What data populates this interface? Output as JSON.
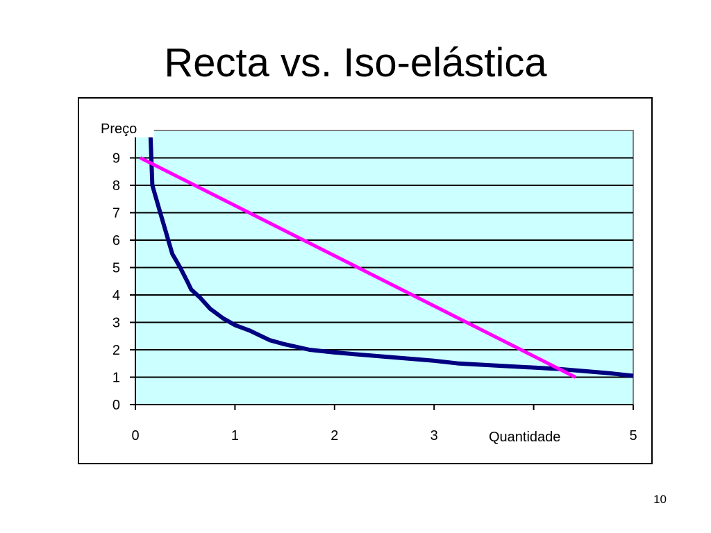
{
  "slide": {
    "title": "Recta vs. Iso-elástica",
    "page_number": "10"
  },
  "chart_data": {
    "type": "line",
    "title": "Recta vs. Iso-elástica",
    "xlabel": "Quantidade",
    "ylabel": "Preço",
    "xlim": [
      0,
      5
    ],
    "ylim": [
      0,
      10
    ],
    "x_ticks": [
      0,
      1,
      2,
      3,
      4,
      5
    ],
    "x_tick_labels": [
      "0",
      "1",
      "2",
      "3",
      "",
      "5"
    ],
    "y_ticks": [
      0,
      1,
      2,
      3,
      4,
      5,
      6,
      7,
      8,
      9
    ],
    "y_tick_labels": [
      "0",
      "1",
      "2",
      "3",
      "4",
      "5",
      "6",
      "7",
      "8",
      "9"
    ],
    "grid": "horizontal",
    "plot_background": "#ccffff",
    "series": [
      {
        "color": "#000080",
        "points": [
          [
            0.15,
            10.0
          ],
          [
            0.17,
            8.0
          ],
          [
            0.25,
            7.0
          ],
          [
            0.37,
            5.5
          ],
          [
            0.45,
            5.0
          ],
          [
            0.52,
            4.5
          ],
          [
            0.56,
            4.2
          ],
          [
            0.65,
            3.9
          ],
          [
            0.75,
            3.5
          ],
          [
            0.88,
            3.15
          ],
          [
            1.0,
            2.9
          ],
          [
            1.15,
            2.7
          ],
          [
            1.35,
            2.35
          ],
          [
            1.5,
            2.2
          ],
          [
            1.75,
            2.0
          ],
          [
            2.0,
            1.9
          ],
          [
            2.5,
            1.75
          ],
          [
            3.0,
            1.6
          ],
          [
            3.25,
            1.5
          ],
          [
            3.75,
            1.4
          ],
          [
            4.25,
            1.3
          ],
          [
            4.75,
            1.15
          ],
          [
            5.0,
            1.05
          ]
        ]
      },
      {
        "color": "#ff00ff",
        "points": [
          [
            0.05,
            9.0
          ],
          [
            4.42,
            1.0
          ]
        ]
      }
    ]
  }
}
